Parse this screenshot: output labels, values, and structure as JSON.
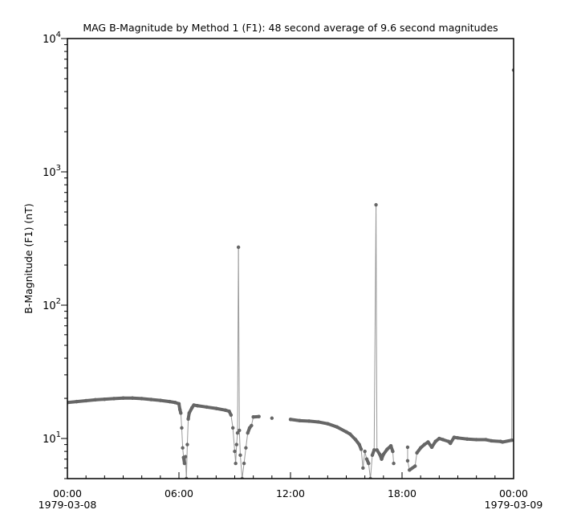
{
  "chart_data": {
    "type": "scatter",
    "title": "MAG  B-Magnitude by Method 1 (F1): 48 second average of 9.6 second magnitudes",
    "xlabel": "",
    "ylabel": "B-Magnitude (F1) (nT)",
    "yscale": "log",
    "ylim": [
      5,
      10000
    ],
    "xlim": [
      "1979-03-08 00:00",
      "1979-03-09 00:00"
    ],
    "x_units": "hours since 1979-03-08 00:00",
    "x_ticks": [
      {
        "hour": 0,
        "label": "00:00",
        "sublabel": "1979-03-08"
      },
      {
        "hour": 6,
        "label": "06:00",
        "sublabel": ""
      },
      {
        "hour": 12,
        "label": "12:00",
        "sublabel": ""
      },
      {
        "hour": 18,
        "label": "18:00",
        "sublabel": ""
      },
      {
        "hour": 24,
        "label": "00:00",
        "sublabel": "1979-03-09"
      }
    ],
    "y_ticks": [
      {
        "value": 10,
        "base": "10",
        "exp": "1"
      },
      {
        "value": 100,
        "base": "10",
        "exp": "2"
      },
      {
        "value": 1000,
        "base": "10",
        "exp": "3"
      },
      {
        "value": 10000,
        "base": "10",
        "exp": "4"
      }
    ],
    "grid": false,
    "colors": {
      "points": "#666666",
      "line": "#999999",
      "axis": "#000000"
    },
    "points": [
      [
        0,
        18.6
      ],
      [
        0.5,
        18.9
      ],
      [
        1,
        19.2
      ],
      [
        1.5,
        19.5
      ],
      [
        2,
        19.7
      ],
      [
        2.5,
        19.9
      ],
      [
        3,
        20.1
      ],
      [
        3.5,
        20.1
      ],
      [
        4,
        19.9
      ],
      [
        4.5,
        19.6
      ],
      [
        5,
        19.3
      ],
      [
        5.5,
        18.9
      ],
      [
        5.8,
        18.6
      ],
      [
        6.0,
        18.2
      ],
      [
        6.05,
        16.5
      ],
      [
        6.1,
        15.5
      ],
      [
        6.15,
        12
      ],
      [
        6.2,
        8.5
      ],
      [
        6.25,
        7.2
      ],
      [
        6.3,
        6.5
      ],
      [
        6.35,
        7.3
      ],
      [
        6.4,
        5
      ],
      [
        6.45,
        9
      ],
      [
        6.5,
        14
      ],
      [
        6.55,
        15.5
      ],
      [
        6.7,
        17
      ],
      [
        6.8,
        17.8
      ],
      [
        7,
        17.6
      ],
      [
        7.5,
        17.2
      ],
      [
        8,
        16.8
      ],
      [
        8.5,
        16.3
      ],
      [
        8.7,
        16
      ],
      [
        8.8,
        15
      ],
      [
        8.9,
        12
      ],
      [
        9.0,
        8
      ],
      [
        9.05,
        6.5
      ],
      [
        9.1,
        9
      ],
      [
        9.15,
        11
      ],
      [
        9.2,
        272
      ],
      [
        9.25,
        11.5
      ],
      [
        9.3,
        7.5
      ],
      [
        9.4,
        5
      ],
      [
        9.5,
        6.5
      ],
      [
        9.6,
        8.5
      ],
      [
        9.7,
        11
      ],
      [
        9.8,
        12
      ],
      [
        9.9,
        12.5
      ],
      [
        10.0,
        14.5
      ],
      [
        10.3,
        14.6
      ],
      [
        11,
        14.2
      ],
      [
        12,
        13.9
      ],
      [
        12.5,
        13.6
      ],
      [
        13,
        13.5
      ],
      [
        13.5,
        13.3
      ],
      [
        14,
        12.9
      ],
      [
        14.5,
        12.2
      ],
      [
        15,
        11.2
      ],
      [
        15.2,
        10.8
      ],
      [
        15.5,
        9.8
      ],
      [
        15.7,
        9
      ],
      [
        15.8,
        8.3
      ],
      [
        15.9,
        6
      ],
      [
        16,
        8
      ],
      [
        16.1,
        7
      ],
      [
        16.2,
        6.5
      ],
      [
        16.3,
        5
      ],
      [
        16.4,
        7.5
      ],
      [
        16.5,
        8.2
      ],
      [
        16.6,
        566
      ],
      [
        16.65,
        8.2
      ],
      [
        16.8,
        7.6
      ],
      [
        16.9,
        7
      ],
      [
        17.0,
        7.6
      ],
      [
        17.2,
        8.3
      ],
      [
        17.4,
        8.8
      ],
      [
        17.5,
        8
      ],
      [
        17.55,
        6.5
      ],
      [
        18.3,
        8.6
      ],
      [
        18.3,
        6.8
      ],
      [
        18.4,
        5.8
      ],
      [
        18.7,
        6.2
      ],
      [
        18.8,
        7.8
      ],
      [
        19,
        8.5
      ],
      [
        19.2,
        9
      ],
      [
        19.4,
        9.4
      ],
      [
        19.6,
        8.6
      ],
      [
        19.8,
        9.5
      ],
      [
        20,
        10
      ],
      [
        20.2,
        9.8
      ],
      [
        20.5,
        9.5
      ],
      [
        20.6,
        9.2
      ],
      [
        20.8,
        10.2
      ],
      [
        21,
        10.1
      ],
      [
        21.5,
        9.9
      ],
      [
        22,
        9.8
      ],
      [
        22.5,
        9.8
      ],
      [
        22.8,
        9.6
      ],
      [
        23.3,
        9.5
      ],
      [
        23.4,
        9.4
      ],
      [
        23.9,
        9.7
      ],
      [
        24,
        5800
      ]
    ]
  }
}
